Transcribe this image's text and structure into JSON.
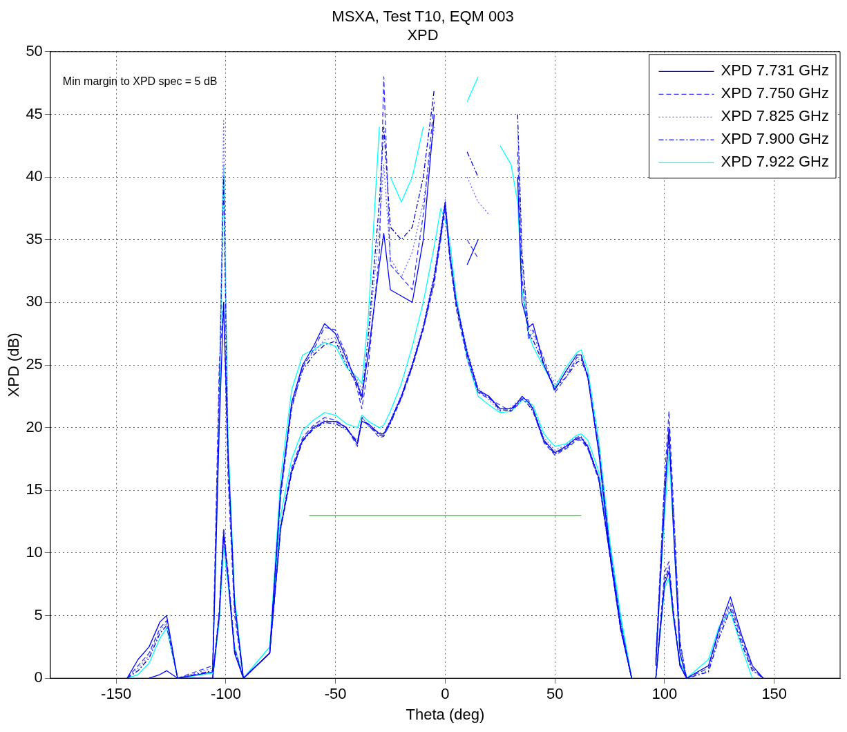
{
  "chart_data": {
    "type": "line",
    "title": "MSXA, Test T10, EQM 003",
    "subtitle": "XPD",
    "xlabel": "Theta (deg)",
    "ylabel": "XPD (dB)",
    "annotations": [
      "Min margin to XPD spec = 5 dB"
    ],
    "xlim": [
      -180,
      180
    ],
    "xticks": [
      -150,
      -100,
      -50,
      0,
      50,
      100,
      150
    ],
    "ylim": [
      0,
      50
    ],
    "yticks": [
      0,
      5,
      10,
      15,
      20,
      25,
      30,
      35,
      40,
      45,
      50
    ],
    "grid": true,
    "legend": "top right",
    "marker": "none",
    "x": [
      -145,
      -140,
      -135,
      -130,
      -127,
      -122,
      -106,
      -103,
      -101,
      -99,
      -96,
      -92,
      -80,
      -75,
      -70,
      -65,
      -60,
      -55,
      -50,
      -45,
      -40,
      -38,
      -35,
      -30,
      -28,
      -25,
      -20,
      -15,
      -10,
      -5,
      -2,
      0,
      2,
      5,
      10,
      15,
      20,
      25,
      30,
      33,
      35,
      38,
      40,
      45,
      50,
      55,
      60,
      62,
      65,
      70,
      75,
      80,
      85,
      92,
      96,
      100,
      102,
      104,
      107,
      110,
      120,
      125,
      130,
      135,
      140,
      145
    ],
    "series": [
      {
        "name": "XPD 7.731 GHz",
        "color": "#0000ff",
        "line_style": "solid",
        "values": [
          0,
          1.5,
          2.5,
          4.5,
          5,
          0,
          0.5,
          20,
          30,
          18,
          6,
          0,
          2,
          15,
          22,
          25,
          26.5,
          28.3,
          27.5,
          25.5,
          23.5,
          22.5,
          26,
          33,
          35.5,
          31,
          30.5,
          30,
          35,
          45,
          null,
          null,
          null,
          null,
          33,
          35,
          null,
          null,
          null,
          40,
          30,
          28,
          28.3,
          25,
          23,
          24.5,
          25.8,
          25.8,
          24,
          18,
          10,
          4,
          0,
          null,
          1,
          14,
          20,
          12,
          2,
          0,
          1,
          4,
          6.5,
          3.5,
          1,
          0
        ]
      },
      {
        "name": "XPD 7.750 GHz",
        "color": "#3333ff",
        "line_style": "dashed",
        "values": [
          0,
          1,
          2,
          4,
          4.6,
          0,
          1,
          25,
          30,
          16,
          5,
          0,
          2,
          14.5,
          21.5,
          24.8,
          26.2,
          28,
          27.8,
          25.8,
          23,
          21.5,
          25,
          34,
          48,
          33,
          32,
          31,
          37,
          46,
          null,
          null,
          null,
          null,
          35,
          33.5,
          null,
          null,
          null,
          42,
          32,
          27,
          27.8,
          25.5,
          22.8,
          24,
          25.6,
          25.6,
          24.2,
          18.5,
          10.5,
          4.5,
          0,
          null,
          1.5,
          16,
          21.3,
          14,
          3,
          0,
          0.8,
          3.8,
          6,
          3.2,
          0.8,
          0
        ]
      },
      {
        "name": "XPD 7.825 GHz",
        "color": "#6666ff",
        "line_style": "dotted",
        "values": [
          0,
          0.8,
          1.8,
          3.8,
          4.4,
          0,
          0.8,
          22,
          44.5,
          17,
          5.5,
          0,
          2,
          15,
          21.8,
          25,
          26,
          27,
          27.2,
          25.2,
          23.8,
          23,
          27,
          36,
          41,
          33.5,
          32,
          34,
          38,
          44,
          null,
          null,
          null,
          null,
          40,
          38,
          37,
          null,
          null,
          44,
          33,
          28,
          27.5,
          25.2,
          23.5,
          24.3,
          25.4,
          25.5,
          24.1,
          18.2,
          10.2,
          4.2,
          0,
          null,
          1.2,
          15,
          19.5,
          13,
          2.5,
          0,
          0.6,
          3.5,
          5.8,
          3,
          0.7,
          0
        ]
      },
      {
        "name": "XPD 7.900 GHz",
        "color": "#0000cc",
        "line_style": "dashdot",
        "values": [
          0,
          0.6,
          1.6,
          3.6,
          4.2,
          0,
          0.6,
          23,
          40,
          17.5,
          5.8,
          0,
          2,
          14.8,
          21.7,
          24.6,
          25.8,
          26.6,
          26.9,
          25,
          23.3,
          22.2,
          27.5,
          38,
          44,
          36,
          35,
          36,
          40,
          47,
          null,
          null,
          null,
          null,
          42,
          40,
          null,
          null,
          null,
          45,
          34,
          27.5,
          27,
          25,
          23.2,
          24,
          25.2,
          25.4,
          24,
          18.3,
          10.3,
          4.3,
          0,
          null,
          1.3,
          15.5,
          19,
          13.5,
          2.7,
          0,
          0.5,
          3.3,
          5.5,
          2.8,
          0.6,
          0
        ]
      },
      {
        "name": "XPD 7.922 GHz",
        "color": "#00ffff",
        "line_style": "solid",
        "values": [
          0,
          0.3,
          1.2,
          3.2,
          4,
          0,
          0.4,
          21,
          41,
          19,
          6.5,
          0,
          2.5,
          16,
          23,
          25.8,
          26.2,
          26.8,
          26.5,
          24.8,
          24,
          23.5,
          29,
          44,
          null,
          40,
          38,
          40,
          44,
          null,
          null,
          null,
          null,
          null,
          46,
          48,
          null,
          42.5,
          41,
          38,
          31,
          27.5,
          26.5,
          24.8,
          23.2,
          24.8,
          26,
          26.2,
          24.6,
          19,
          11,
          5,
          0,
          null,
          2,
          13,
          18,
          12,
          2,
          0,
          1.5,
          4.2,
          5.3,
          2.5,
          0,
          null
        ]
      },
      {
        "color": "#0000ff",
        "line_style": "solid",
        "values": [
          null,
          null,
          0,
          0.3,
          0.6,
          0,
          0,
          5,
          11.5,
          8,
          2,
          0,
          2,
          12,
          16.5,
          19,
          20,
          20.5,
          20.5,
          20,
          18.7,
          20.5,
          20.3,
          19.5,
          19.5,
          20.5,
          22.5,
          25,
          28,
          32,
          35.5,
          38,
          34,
          30,
          26,
          23,
          22.5,
          21.5,
          21.5,
          22,
          22.5,
          22,
          21.5,
          19,
          18,
          18.5,
          19.2,
          19.2,
          18.5,
          16,
          10,
          4,
          0,
          null,
          0,
          7.5,
          8.5,
          5,
          1,
          0,
          null,
          null,
          null,
          null,
          null,
          null
        ]
      },
      {
        "color": "#3333ff",
        "line_style": "dashed",
        "values": [
          null,
          null,
          null,
          null,
          null,
          null,
          0,
          5.5,
          12,
          8.5,
          2.5,
          0,
          2,
          12.2,
          16.8,
          19.2,
          20.2,
          20.8,
          20.6,
          20,
          18.5,
          20.8,
          20.2,
          19.2,
          19.3,
          20.4,
          22.3,
          24.8,
          27.8,
          31.5,
          35,
          37.5,
          33.5,
          29.5,
          25.5,
          22.8,
          22.3,
          21.8,
          21.3,
          21.8,
          22.3,
          22.2,
          21.4,
          18.8,
          17.8,
          18.3,
          19,
          19,
          18.3,
          15.8,
          9.8,
          3.8,
          0,
          null,
          0,
          8.5,
          9.3,
          5.5,
          1.2,
          0,
          null,
          null,
          null,
          null,
          null,
          null
        ]
      },
      {
        "color": "#6666ff",
        "line_style": "dotted",
        "values": [
          null,
          null,
          null,
          null,
          null,
          null,
          0,
          4.8,
          11,
          7.8,
          2,
          0,
          2,
          12.1,
          16.6,
          19,
          20.1,
          20.6,
          20.4,
          19.8,
          19,
          20.9,
          20.1,
          19.6,
          19.6,
          20.6,
          22.6,
          25.2,
          28.2,
          32.3,
          35.8,
          38.2,
          34.2,
          30.2,
          26.2,
          23.2,
          22.2,
          21.3,
          21.6,
          22.1,
          22.4,
          22.1,
          21.6,
          19.2,
          18.2,
          18.6,
          19.3,
          19.3,
          18.6,
          16.1,
          10.1,
          4.1,
          0,
          null,
          0,
          8,
          9,
          5.2,
          1.1,
          0,
          null,
          null,
          null,
          null,
          null,
          null
        ]
      },
      {
        "color": "#0000cc",
        "line_style": "dashdot",
        "values": [
          null,
          null,
          null,
          null,
          null,
          null,
          0,
          5.2,
          11.8,
          8.2,
          2.2,
          0,
          2,
          11.9,
          16.4,
          18.9,
          19.9,
          20.4,
          20.3,
          19.9,
          18.9,
          20.6,
          20.2,
          19.4,
          19.4,
          20.3,
          22.4,
          24.9,
          27.9,
          31.8,
          35.2,
          37.8,
          33.8,
          29.8,
          25.8,
          22.9,
          22.4,
          21.4,
          21.4,
          21.9,
          22.3,
          21.8,
          21.3,
          18.9,
          17.9,
          18.4,
          19.1,
          19.1,
          18.4,
          15.9,
          9.9,
          3.9,
          0,
          null,
          0,
          7.8,
          8.8,
          5.1,
          1,
          0,
          null,
          null,
          null,
          null,
          null,
          null
        ]
      },
      {
        "color": "#00ffff",
        "line_style": "solid",
        "values": [
          null,
          null,
          null,
          null,
          null,
          null,
          0,
          4.5,
          10.5,
          7.5,
          2.5,
          0,
          2.5,
          13,
          17.5,
          19.8,
          20.6,
          21.2,
          21,
          20.3,
          20,
          21,
          20.5,
          20,
          20.2,
          21.3,
          23.5,
          26.5,
          30,
          34.5,
          37.5,
          36.5,
          35,
          30.5,
          25.5,
          22.5,
          21.8,
          21.2,
          21.3,
          21.8,
          22.2,
          22,
          21.8,
          19.5,
          18.5,
          18.7,
          19.4,
          19.5,
          19,
          16.5,
          10.8,
          4.8,
          0,
          null,
          0,
          7.2,
          8,
          4.8,
          1.3,
          0,
          null,
          null,
          null,
          null,
          null,
          null
        ]
      },
      {
        "color": "#00ff00",
        "line_style": "solid",
        "x": [
          -62,
          62
        ],
        "values": [
          13,
          13
        ]
      }
    ]
  }
}
